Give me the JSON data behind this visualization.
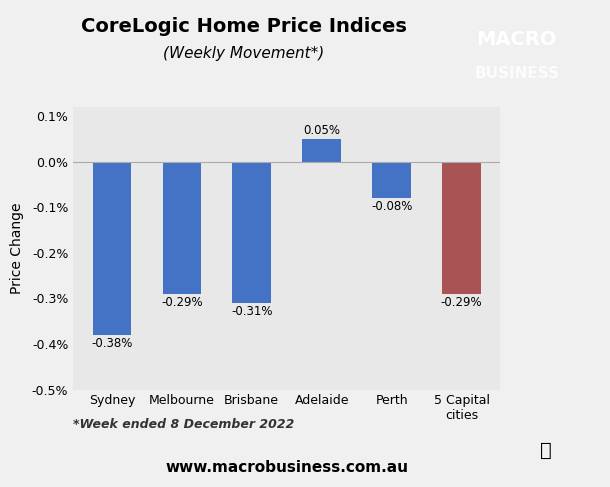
{
  "title": "CoreLogic Home Price Indices",
  "subtitle": "(Weekly Movement*)",
  "categories": [
    "Sydney",
    "Melbourne",
    "Brisbane",
    "Adelaide",
    "Perth",
    "5 Capital\ncities"
  ],
  "values": [
    -0.38,
    -0.29,
    -0.31,
    0.05,
    -0.08,
    -0.29
  ],
  "bar_colors": [
    "#4472C4",
    "#4472C4",
    "#4472C4",
    "#4472C4",
    "#4472C4",
    "#A85454"
  ],
  "labels": [
    "-0.38%",
    "-0.29%",
    "-0.31%",
    "0.05%",
    "-0.08%",
    "-0.29%"
  ],
  "ylabel": "Price Change",
  "ylim": [
    -0.5,
    0.12
  ],
  "yticks": [
    -0.5,
    -0.4,
    -0.3,
    -0.2,
    -0.1,
    0.0,
    0.1
  ],
  "ytick_labels": [
    "-0.5%",
    "-0.4%",
    "-0.3%",
    "-0.2%",
    "-0.1%",
    "0.0%",
    "0.1%"
  ],
  "footnote": "*Week ended 8 December 2022",
  "website": "www.macrobusiness.com.au",
  "background_color": "#F0F0F0",
  "plot_bg_color": "#E8E8E8",
  "logo_bg_color": "#DD1111",
  "logo_text_line1": "MACRO",
  "logo_text_line2": "BUSINESS",
  "bar_label_fontsize": 8.5,
  "axis_fontsize": 9,
  "title_fontsize": 14,
  "subtitle_fontsize": 11
}
